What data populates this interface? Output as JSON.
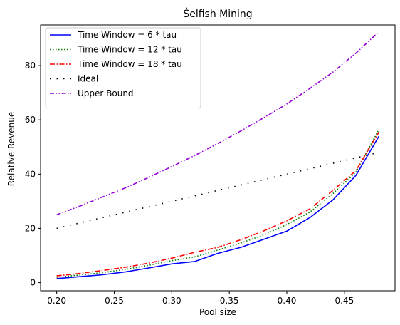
{
  "chart_data": {
    "type": "line",
    "title": "Ṡelfish Mining",
    "xlabel": "Pool size",
    "ylabel": "Relative Revenue",
    "xlim": [
      0.186,
      0.494
    ],
    "ylim": [
      -3,
      95
    ],
    "xticks": [
      0.2,
      0.25,
      0.3,
      0.35,
      0.4,
      0.45
    ],
    "xtick_labels": [
      "0.20",
      "0.25",
      "0.30",
      "0.35",
      "0.40",
      "0.45"
    ],
    "yticks": [
      0,
      20,
      40,
      60,
      80
    ],
    "ytick_labels": [
      "0",
      "20",
      "40",
      "60",
      "80"
    ],
    "grid": false,
    "legend_position": "top-left",
    "x": [
      0.2,
      0.22,
      0.24,
      0.26,
      0.28,
      0.3,
      0.32,
      0.34,
      0.36,
      0.38,
      0.4,
      0.42,
      0.44,
      0.46,
      0.48
    ],
    "series": [
      {
        "name": "Time Window = 6 * tau",
        "color": "#0000ff",
        "dash": "solid",
        "values": [
          1.5,
          2.2,
          2.9,
          4.0,
          5.4,
          6.9,
          7.8,
          10.8,
          13.0,
          16.0,
          19.0,
          24.0,
          30.5,
          39.5,
          54.0
        ]
      },
      {
        "name": "Time Window = 12 * tau",
        "color": "#008000",
        "dash": "dotted",
        "values": [
          2.0,
          2.8,
          3.7,
          4.9,
          6.4,
          8.1,
          9.5,
          12.0,
          14.6,
          17.6,
          21.4,
          26.0,
          32.8,
          40.7,
          56.5
        ]
      },
      {
        "name": "Time Window = 18 * tau",
        "color": "#ff0000",
        "dash": "dashdot",
        "values": [
          2.5,
          3.4,
          4.5,
          5.7,
          7.2,
          9.0,
          11.2,
          13.0,
          15.8,
          19.1,
          22.8,
          27.2,
          34.0,
          41.3,
          55.5
        ]
      },
      {
        "name": "Ideal",
        "color": "#000000",
        "dash": "sparse-dotted",
        "values": [
          20.0,
          22.0,
          24.0,
          26.0,
          28.0,
          30.0,
          32.0,
          34.0,
          36.0,
          38.0,
          40.0,
          42.0,
          44.0,
          46.0,
          48.0
        ]
      },
      {
        "name": "Upper Bound",
        "color": "#9400d3",
        "dash": "dashdotdot",
        "values": [
          25.0,
          28.2,
          31.6,
          35.0,
          38.8,
          42.8,
          46.9,
          51.3,
          55.9,
          60.8,
          65.9,
          71.6,
          77.6,
          84.6,
          92.5
        ]
      }
    ]
  }
}
